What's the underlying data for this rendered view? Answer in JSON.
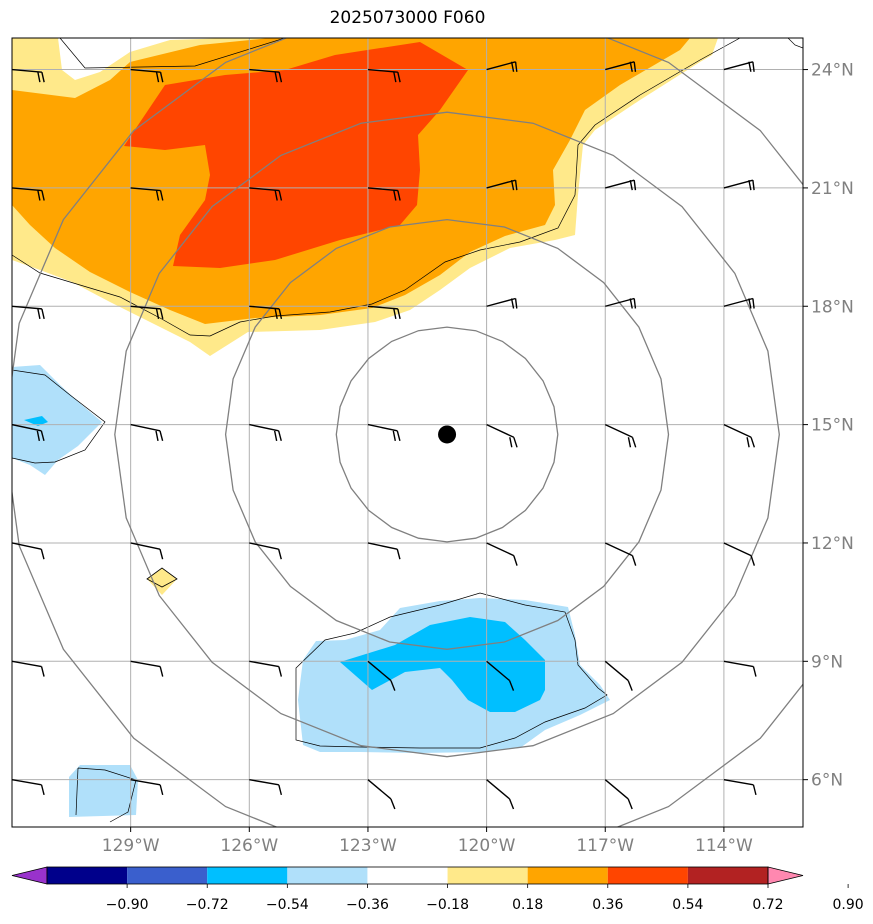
{
  "title": "2025073000 F060",
  "map": {
    "lon_range": [
      -132,
      -112
    ],
    "lat_range": [
      4.8,
      24.8
    ],
    "longitude_ticks": [
      {
        "lon": -129,
        "label": "129°W"
      },
      {
        "lon": -126,
        "label": "126°W"
      },
      {
        "lon": -123,
        "label": "123°W"
      },
      {
        "lon": -120,
        "label": "120°W"
      },
      {
        "lon": -117,
        "label": "117°W"
      },
      {
        "lon": -114,
        "label": "114°W"
      }
    ],
    "latitude_ticks": [
      {
        "lat": 24,
        "label": "24°N"
      },
      {
        "lat": 21,
        "label": "21°N"
      },
      {
        "lat": 18,
        "label": "18°N"
      },
      {
        "lat": 15,
        "label": "15°N"
      },
      {
        "lat": 12,
        "label": "12°N"
      },
      {
        "lat": 9,
        "label": "9°N"
      },
      {
        "lat": 6,
        "label": "6°N"
      }
    ],
    "grid": true,
    "storm_center": {
      "lon": -121,
      "lat": 14.75
    },
    "range_rings_deg": [
      2.8,
      5.6,
      8.4,
      11.2
    ],
    "colors": {
      "neg_090": "#9932cc",
      "neg_072": "#00008b",
      "neg_054": "#3a5fcd",
      "neg_036": "#00bfff",
      "neg_018": "#b0e0fa",
      "zero": "#ffffff",
      "pos_018": "#ffe98a",
      "pos_036": "#ffa500",
      "pos_054": "#ff4500",
      "pos_072": "#b22222",
      "pos_090": "#ff88b0",
      "grid": "#b0b0b0",
      "rings": "#808080",
      "tick_label": "#808080"
    }
  },
  "colorbar": {
    "colors": [
      "#9932cc",
      "#00008b",
      "#3a5fcd",
      "#00bfff",
      "#b0e0fa",
      "#ffffff",
      "#ffe98a",
      "#ffa500",
      "#ff4500",
      "#b22222",
      "#ff88b0"
    ],
    "tick_labels": [
      "−0.90",
      "−0.72",
      "−0.54",
      "−0.36",
      "−0.18",
      "0.18",
      "0.36",
      "0.54",
      "0.72",
      "0.90"
    ]
  },
  "wind_barbs": {
    "longitudes": [
      -132,
      -129,
      -126,
      -123,
      -120,
      -117,
      -114
    ],
    "latitudes": [
      24,
      21,
      18,
      15,
      12,
      9,
      6
    ]
  }
}
